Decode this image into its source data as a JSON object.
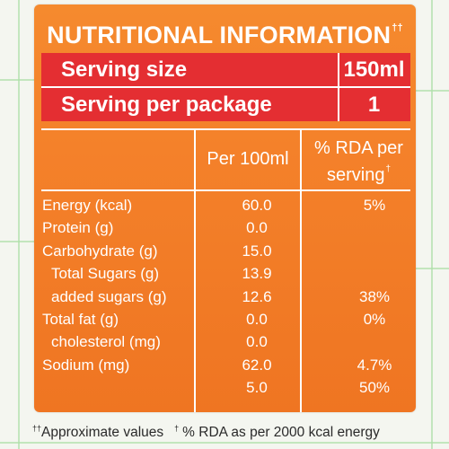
{
  "label": {
    "title": "NUTRITIONAL INFORMATION",
    "title_marker": "††",
    "serving_size_label": "Serving size",
    "serving_size_value": "150ml",
    "servings_per_package_label": "Serving per package",
    "servings_per_package_value": "1",
    "col_per100": "Per 100ml",
    "col_rda_line1": "% RDA per",
    "col_rda_line2": "serving",
    "col_rda_marker": "†",
    "rows": [
      {
        "label": "Energy (kcal)",
        "per100": "60.0",
        "rda": "5%"
      },
      {
        "label": "Protein (g)",
        "per100": "0.0",
        "rda": ""
      },
      {
        "label": "Carbohydrate (g)",
        "per100": "15.0",
        "rda": ""
      },
      {
        "label": "Total Sugars (g)",
        "per100": "13.9",
        "rda": ""
      },
      {
        "label": "added sugars (g)",
        "per100": "12.6",
        "rda": "38%"
      },
      {
        "label": "Total fat (g)",
        "per100": "0.0",
        "rda": "0%"
      },
      {
        "label": "cholesterol (mg)",
        "per100": "0.0",
        "rda": ""
      },
      {
        "label": "Sodium (mg)",
        "per100": "62.0",
        "rda": "4.7%"
      },
      {
        "label": "",
        "per100": "5.0",
        "rda": "50%"
      }
    ]
  },
  "footnote": {
    "marker1": "††",
    "text1": "Approximate values",
    "marker2": "†",
    "text2": "% RDA as per 2000 kcal energy"
  },
  "colors": {
    "panel": "#f4812a",
    "header_rows": "#e42e32",
    "text": "#ffffff",
    "background_lines": "#aee0a8"
  }
}
